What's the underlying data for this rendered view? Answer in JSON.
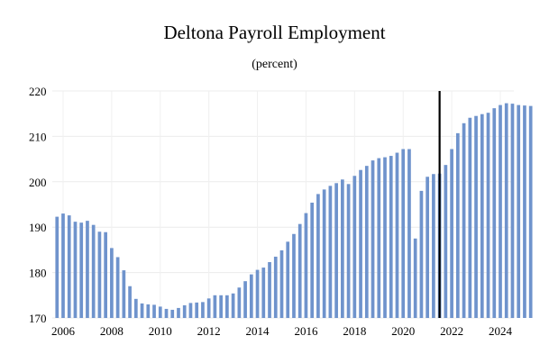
{
  "chart_data": {
    "type": "bar",
    "title": "Deltona Payroll Employment",
    "subtitle": "(percent)",
    "xlabel": "",
    "ylabel": "",
    "ylim": [
      170,
      220
    ],
    "yticks": [
      170,
      180,
      190,
      200,
      210,
      220
    ],
    "x_tick_labels": [
      "2006",
      "2008",
      "2010",
      "2012",
      "2014",
      "2016",
      "2018",
      "2020",
      "2022",
      "2024"
    ],
    "x_tick_years": [
      2006,
      2008,
      2010,
      2012,
      2014,
      2016,
      2018,
      2020,
      2022,
      2024
    ],
    "start_year": 2005.75,
    "periods_per_year": 4,
    "forecast_divider_year": 2021.5,
    "grid": true,
    "bar_color": "#6f93cc",
    "divider_color": "#000000",
    "values": [
      192.3,
      193.0,
      192.6,
      191.2,
      191.0,
      191.4,
      190.5,
      189.0,
      188.9,
      185.4,
      183.4,
      180.5,
      177.0,
      174.2,
      173.2,
      173.0,
      172.9,
      172.5,
      172.0,
      171.8,
      172.2,
      172.8,
      173.3,
      173.4,
      173.5,
      174.3,
      175.0,
      175.0,
      175.0,
      175.4,
      176.7,
      178.1,
      179.6,
      180.6,
      181.1,
      182.3,
      183.5,
      184.9,
      186.8,
      188.5,
      190.7,
      193.1,
      195.4,
      197.3,
      198.3,
      199.1,
      199.7,
      200.5,
      199.5,
      201.3,
      202.6,
      203.5,
      204.7,
      205.2,
      205.4,
      205.7,
      206.4,
      207.2,
      207.2,
      187.5,
      198.0,
      201.1,
      201.7,
      201.8,
      203.7,
      207.2,
      210.7,
      212.9,
      214.1,
      214.5,
      214.9,
      215.2,
      216.2,
      216.9,
      217.3,
      217.2,
      216.9,
      216.8,
      216.7
    ]
  }
}
